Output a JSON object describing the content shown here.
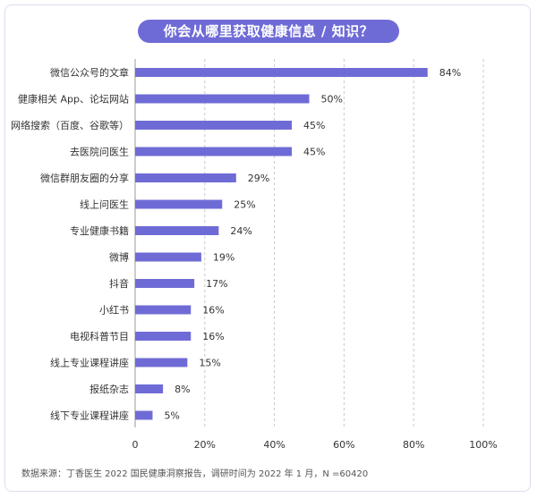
{
  "title": "你会从哪里获取健康信息 / 知识？",
  "footer": "数据来源：丁香医生 2022 国民健康洞察报告，调研时间为 2022 年 1 月，N =60420",
  "colors": {
    "bar": "#6f6bd6",
    "title_bg": "#6f6bd6",
    "grid": "#c8c8c8"
  },
  "chart_data": {
    "type": "bar",
    "orientation": "horizontal",
    "categories": [
      "微信公众号的文章",
      "健康相关 App、论坛网站",
      "网络搜索（百度、谷歌等）",
      "去医院问医生",
      "微信群朋友圈的分享",
      "线上问医生",
      "专业健康书籍",
      "微博",
      "抖音",
      "小红书",
      "电视科普节目",
      "线上专业课程讲座",
      "报纸杂志",
      "线下专业课程讲座"
    ],
    "values": [
      84,
      50,
      45,
      45,
      29,
      25,
      24,
      19,
      17,
      16,
      16,
      15,
      8,
      5
    ],
    "value_labels": [
      "84%",
      "50%",
      "45%",
      "45%",
      "29%",
      "25%",
      "24%",
      "19%",
      "17%",
      "16%",
      "16%",
      "15%",
      "8%",
      "5%"
    ],
    "xlim": [
      0,
      100
    ],
    "xticks": [
      0,
      20,
      40,
      60,
      80,
      100
    ],
    "xtick_labels": [
      "0",
      "20%",
      "40%",
      "60%",
      "80%",
      "100%"
    ],
    "grid": "vertical dashed"
  }
}
